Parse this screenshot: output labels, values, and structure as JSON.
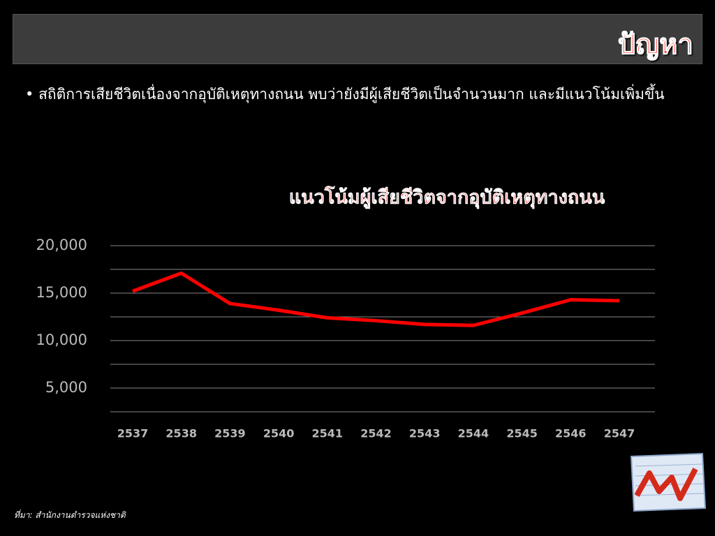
{
  "header": {
    "title": "ปัญหา"
  },
  "bullet": "สถิติการเสียชีวิตเนื่องจากอุบัติเหตุทางถนน พบว่ายังมีผู้เสียชีวิตเป็นจำนวนมาก และมีแนวโน้มเพิ่มขึ้น",
  "source": "ที่มา: สำนักงานตำรวจแห่งชาติ",
  "chart_data": {
    "type": "line",
    "title": "แนวโน้มผู้เสียชีวิตจากอุบัติเหตุทางถนน",
    "categories": [
      "2537",
      "2538",
      "2539",
      "2540",
      "2541",
      "2542",
      "2543",
      "2544",
      "2545",
      "2546",
      "2547"
    ],
    "series": [
      {
        "name": "ผู้เสียชีวิต",
        "color": "#ff0000",
        "values": [
          15200,
          17100,
          13900,
          13200,
          12400,
          12100,
          11700,
          11600,
          12900,
          14300,
          14200
        ]
      }
    ],
    "ylim": [
      2500,
      20000
    ],
    "yticks": [
      {
        "value": 5000,
        "label": "5,000"
      },
      {
        "value": 10000,
        "label": "10,000"
      },
      {
        "value": 15000,
        "label": "15,000"
      },
      {
        "value": 20000,
        "label": "20,000"
      }
    ],
    "minor_yticks": [
      2500,
      7500,
      12500,
      17500
    ],
    "grid": true,
    "legend": false
  }
}
